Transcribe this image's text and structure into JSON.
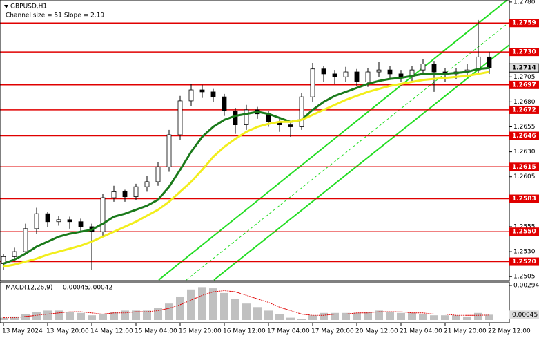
{
  "chart_data": {
    "type": "candlestick",
    "title": "GBPUSD,H1",
    "subtitle": "Channel size = 51 Slope = 2.19",
    "x_labels": [
      "13 May 2024",
      "13 May 20:00",
      "14 May 12:00",
      "15 May 04:00",
      "15 May 20:00",
      "16 May 12:00",
      "17 May 04:00",
      "17 May 20:00",
      "20 May 12:00",
      "21 May 04:00",
      "21 May 20:00",
      "22 May 12:00"
    ],
    "open": [
      1.2518,
      1.2525,
      1.253,
      1.2553,
      1.2568,
      1.256,
      1.2562,
      1.256,
      1.2555,
      1.255,
      1.2584,
      1.259,
      1.2585,
      1.2595,
      1.26,
      1.2615,
      1.2647,
      1.2681,
      1.2692,
      1.269,
      1.2685,
      1.2671,
      1.2657,
      1.2672,
      1.2668,
      1.266,
      1.2657,
      1.2655,
      1.2685,
      1.2713,
      1.2708,
      1.2705,
      1.271,
      1.27,
      1.271,
      1.2712,
      1.2708,
      1.2705,
      1.2712,
      1.2718,
      1.271,
      1.2708,
      1.271,
      1.2712,
      1.2725
    ],
    "high": [
      1.2528,
      1.2534,
      1.2558,
      1.2574,
      1.257,
      1.2566,
      1.2565,
      1.2563,
      1.2558,
      1.2588,
      1.2596,
      1.2592,
      1.2598,
      1.2606,
      1.262,
      1.2652,
      1.2686,
      1.2698,
      1.2697,
      1.2693,
      1.2688,
      1.2674,
      1.2677,
      1.2675,
      1.2671,
      1.2664,
      1.2661,
      1.2689,
      1.2719,
      1.2716,
      1.2712,
      1.2715,
      1.2713,
      1.2714,
      1.272,
      1.2716,
      1.2712,
      1.2716,
      1.2723,
      1.2721,
      1.2714,
      1.2714,
      1.2718,
      1.2762,
      1.273
    ],
    "low": [
      1.2512,
      1.252,
      1.2527,
      1.2548,
      1.2555,
      1.2556,
      1.2553,
      1.255,
      1.2512,
      1.2545,
      1.258,
      1.258,
      1.2582,
      1.259,
      1.2596,
      1.261,
      1.2642,
      1.2676,
      1.2684,
      1.268,
      1.2666,
      1.2648,
      1.2652,
      1.2663,
      1.2655,
      1.265,
      1.2645,
      1.2652,
      1.268,
      1.27,
      1.2698,
      1.27,
      1.2696,
      1.2695,
      1.2705,
      1.2702,
      1.27,
      1.27,
      1.2708,
      1.269,
      1.27,
      1.2703,
      1.2705,
      1.2708,
      1.2708
    ],
    "close": [
      1.2525,
      1.253,
      1.2553,
      1.2568,
      1.256,
      1.2562,
      1.256,
      1.2555,
      1.255,
      1.2584,
      1.259,
      1.2585,
      1.2595,
      1.26,
      1.2615,
      1.2647,
      1.2681,
      1.2692,
      1.269,
      1.2685,
      1.2671,
      1.2657,
      1.2672,
      1.2668,
      1.266,
      1.2657,
      1.2655,
      1.2685,
      1.2713,
      1.2708,
      1.2705,
      1.271,
      1.27,
      1.271,
      1.2712,
      1.2708,
      1.2705,
      1.2712,
      1.2718,
      1.271,
      1.2708,
      1.271,
      1.2712,
      1.2725,
      1.2714
    ],
    "series": [
      {
        "color": "#1a7a1a",
        "values": [
          1.2518,
          1.2522,
          1.2528,
          1.2535,
          1.254,
          1.2545,
          1.2548,
          1.255,
          1.2552,
          1.2558,
          1.2565,
          1.2568,
          1.2572,
          1.2576,
          1.2582,
          1.2595,
          1.2612,
          1.263,
          1.2645,
          1.2655,
          1.2662,
          1.2666,
          1.2668,
          1.267,
          1.2668,
          1.2664,
          1.266,
          1.2662,
          1.2672,
          1.268,
          1.2686,
          1.269,
          1.2694,
          1.2698,
          1.2701,
          1.2703,
          1.2704,
          1.2706,
          1.2708,
          1.2708,
          1.2708,
          1.2709,
          1.271,
          1.2713,
          1.2714
        ]
      },
      {
        "color": "#f2ee1c",
        "values": [
          1.2515,
          1.2517,
          1.252,
          1.2523,
          1.2527,
          1.253,
          1.2533,
          1.2536,
          1.254,
          1.2545,
          1.255,
          1.2555,
          1.256,
          1.2566,
          1.2572,
          1.258,
          1.259,
          1.26,
          1.2612,
          1.2625,
          1.2635,
          1.2643,
          1.265,
          1.2655,
          1.2658,
          1.266,
          1.266,
          1.2662,
          1.2667,
          1.2672,
          1.2677,
          1.2682,
          1.2686,
          1.269,
          1.2693,
          1.2696,
          1.2698,
          1.27,
          1.2702,
          1.2703,
          1.2704,
          1.2705,
          1.2706,
          1.2708,
          1.271
        ]
      }
    ],
    "levels": [
      1.2759,
      {
        "value": 1.273,
        "label": "1.2730"
      },
      1.2697,
      1.2672,
      1.2646,
      1.2615,
      1.2583,
      {
        "value": 1.255,
        "label": "1.2550"
      },
      {
        "value": 1.252,
        "label": "1.2520"
      }
    ],
    "level_color": "#e00000",
    "current_price": 1.2714,
    "ylim": [
      1.2501,
      1.2782
    ],
    "yticks": [
      {
        "value": 1.278,
        "label": "1.2780"
      },
      1.2705,
      {
        "value": 1.268,
        "label": "1.2680"
      },
      1.2655,
      {
        "value": 1.263,
        "label": "1.2630"
      },
      1.2605,
      1.2555,
      {
        "value": 1.253,
        "label": "1.2530"
      },
      1.2505
    ],
    "macd": {
      "label": "MACD(12,26,9)",
      "macd_value": 0.00045,
      "signal_value": 0.00042,
      "ylim": [
        0,
        0.00294
      ],
      "yticks": [
        0.00294
      ],
      "histogram": [
        0.0002,
        0.0003,
        0.0005,
        0.0007,
        0.0008,
        0.0008,
        0.0007,
        0.0006,
        0.0004,
        0.0005,
        0.0007,
        0.0008,
        0.0008,
        0.0008,
        0.001,
        0.0014,
        0.002,
        0.0026,
        0.0028,
        0.0027,
        0.0023,
        0.0018,
        0.0014,
        0.0011,
        0.0008,
        0.0005,
        0.0002,
        0.0001,
        0.0004,
        0.0006,
        0.0006,
        0.0006,
        0.0006,
        0.0007,
        0.0008,
        0.0007,
        0.0006,
        0.0006,
        0.0005,
        0.0004,
        0.0004,
        0.0004,
        0.0003,
        0.0006,
        0.00045
      ],
      "signal": [
        0.0002,
        0.0002,
        0.0003,
        0.0004,
        0.0005,
        0.0006,
        0.0007,
        0.0007,
        0.0006,
        0.0005,
        0.0006,
        0.0006,
        0.0007,
        0.0007,
        0.0008,
        0.001,
        0.0013,
        0.0017,
        0.0021,
        0.0024,
        0.0025,
        0.0024,
        0.0021,
        0.0018,
        0.0015,
        0.0011,
        0.0008,
        0.0005,
        0.0004,
        0.0004,
        0.0005,
        0.0005,
        0.0006,
        0.0006,
        0.0007,
        0.0007,
        0.0007,
        0.0006,
        0.0006,
        0.0005,
        0.0005,
        0.0004,
        0.0004,
        0.0004,
        0.00042
      ]
    }
  }
}
